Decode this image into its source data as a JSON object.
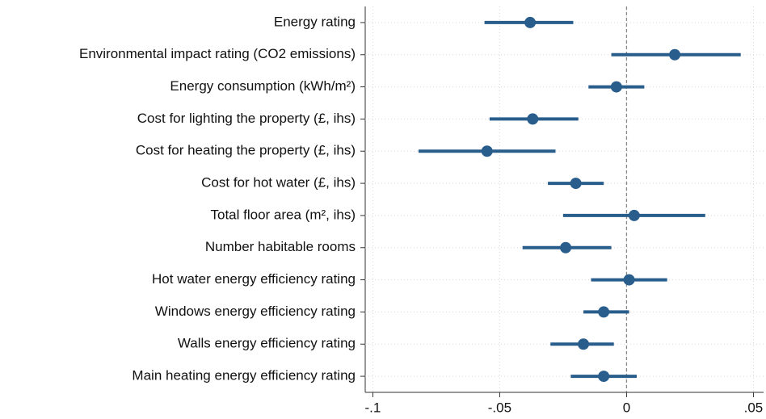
{
  "chart_data": {
    "type": "coefplot",
    "categories": [
      "Energy rating",
      "Environmental impact rating (CO2 emissions)",
      "Energy consumption (kWh/m²)",
      "Cost for lighting the property (£, ihs)",
      "Cost for heating the property (£, ihs)",
      "Cost for hot water (£, ihs)",
      "Total floor area (m², ihs)",
      "Number habitable rooms",
      "Hot water energy efficiency rating",
      "Windows energy efficiency rating",
      "Walls energy efficiency rating",
      "Main heating energy efficiency rating"
    ],
    "values": [
      -0.038,
      0.019,
      -0.004,
      -0.037,
      -0.055,
      -0.02,
      0.003,
      -0.024,
      0.001,
      -0.009,
      -0.017,
      -0.009
    ],
    "ci_low": [
      -0.056,
      -0.006,
      -0.015,
      -0.054,
      -0.082,
      -0.031,
      -0.025,
      -0.041,
      -0.014,
      -0.017,
      -0.03,
      -0.022
    ],
    "ci_high": [
      -0.021,
      0.045,
      0.007,
      -0.019,
      -0.028,
      -0.009,
      0.031,
      -0.006,
      0.016,
      0.001,
      -0.005,
      0.004
    ],
    "color": "#295d8c",
    "xlim": [
      -0.103,
      0.054
    ],
    "xticks": [
      {
        "value": -0.1,
        "label": "-.1"
      },
      {
        "value": -0.05,
        "label": "-.05"
      },
      0,
      {
        "value": 0.05,
        "label": ".05"
      }
    ],
    "reference_line": 0,
    "grid": true
  }
}
